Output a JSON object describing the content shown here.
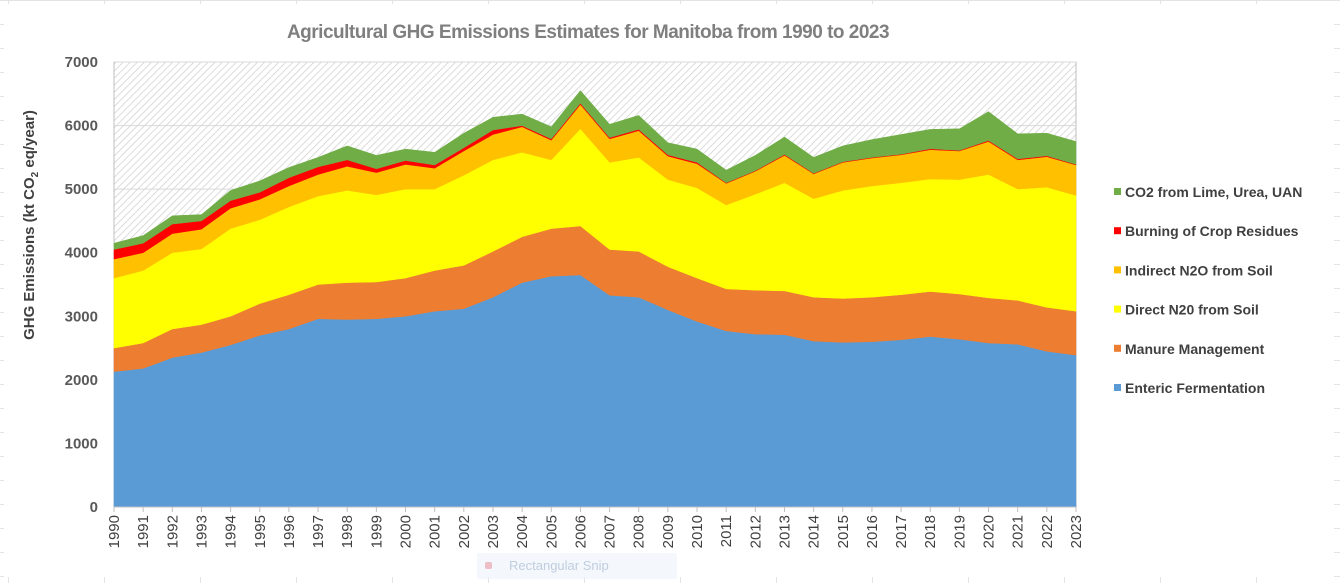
{
  "chart_data": {
    "type": "area",
    "stacked": true,
    "title": "Agricultural GHG Emissions Estimates for Manitoba from 1990 to 2023",
    "xlabel": "",
    "ylabel": "GHG Emissions (kt CO2 eq/year)",
    "ylabel_parts": {
      "before": "GHG Emissions (kt CO",
      "sub": "2",
      "after": " eq/year)"
    },
    "ylim": [
      0,
      7000
    ],
    "yticks": [
      0,
      1000,
      2000,
      3000,
      4000,
      5000,
      6000,
      7000
    ],
    "grid": "horizontal",
    "legend_position": "right",
    "categories": [
      "1990",
      "1991",
      "1992",
      "1993",
      "1994",
      "1995",
      "1996",
      "1997",
      "1998",
      "1999",
      "2000",
      "2001",
      "2002",
      "2003",
      "2004",
      "2005",
      "2006",
      "2007",
      "2008",
      "2009",
      "2010",
      "2011",
      "2012",
      "2013",
      "2014",
      "2015",
      "2016",
      "2017",
      "2018",
      "2019",
      "2020",
      "2021",
      "2022",
      "2023"
    ],
    "series": [
      {
        "name": "Enteric Fermentation",
        "color": "#5b9bd5",
        "values": [
          2130,
          2180,
          2350,
          2430,
          2550,
          2700,
          2800,
          2960,
          2950,
          2960,
          3000,
          3080,
          3120,
          3300,
          3530,
          3630,
          3650,
          3330,
          3300,
          3100,
          2920,
          2770,
          2720,
          2710,
          2610,
          2590,
          2600,
          2630,
          2680,
          2640,
          2580,
          2560,
          2450,
          2390
        ]
      },
      {
        "name": "Manure Management",
        "color": "#ed7d31",
        "values": [
          370,
          400,
          450,
          440,
          450,
          500,
          540,
          540,
          580,
          580,
          600,
          640,
          680,
          720,
          720,
          750,
          770,
          720,
          720,
          680,
          680,
          660,
          690,
          690,
          690,
          690,
          700,
          710,
          710,
          710,
          710,
          690,
          690,
          690
        ]
      },
      {
        "name": "Direct N20 from Soil",
        "color": "#ffff00",
        "values": [
          1100,
          1140,
          1200,
          1190,
          1380,
          1320,
          1380,
          1390,
          1450,
          1370,
          1400,
          1280,
          1420,
          1440,
          1330,
          1080,
          1530,
          1370,
          1480,
          1370,
          1420,
          1320,
          1510,
          1700,
          1550,
          1700,
          1750,
          1760,
          1770,
          1800,
          1940,
          1750,
          1890,
          1820
        ]
      },
      {
        "name": "Indirect N2O from Soil",
        "color": "#ffc000",
        "values": [
          300,
          280,
          300,
          310,
          320,
          320,
          330,
          340,
          380,
          350,
          390,
          330,
          380,
          400,
          400,
          310,
          380,
          370,
          420,
          370,
          380,
          340,
          360,
          430,
          390,
          440,
          440,
          440,
          460,
          450,
          520,
          460,
          480,
          480
        ]
      },
      {
        "name": "Burning of Crop Residues",
        "color": "#ff0000",
        "values": [
          150,
          150,
          150,
          130,
          120,
          110,
          130,
          120,
          100,
          60,
          60,
          50,
          50,
          70,
          20,
          20,
          20,
          20,
          20,
          20,
          20,
          10,
          10,
          15,
          10,
          10,
          10,
          10,
          15,
          10,
          15,
          15,
          15,
          10
        ]
      },
      {
        "name": "CO2 from Lime, Urea, UAN",
        "color": "#70ad47",
        "values": [
          100,
          120,
          130,
          100,
          160,
          180,
          160,
          150,
          220,
          210,
          180,
          200,
          230,
          200,
          180,
          190,
          200,
          210,
          220,
          190,
          210,
          200,
          240,
          275,
          250,
          250,
          280,
          310,
          305,
          340,
          455,
          395,
          355,
          360
        ]
      }
    ],
    "legend_order": [
      "CO2 from Lime, Urea, UAN",
      "Burning of Crop Residues",
      "Indirect N2O from Soil",
      "Direct N20 from Soil",
      "Manure Management",
      "Enteric Fermentation"
    ]
  },
  "overlay": {
    "snip_tooltip": "Rectangular Snip"
  }
}
